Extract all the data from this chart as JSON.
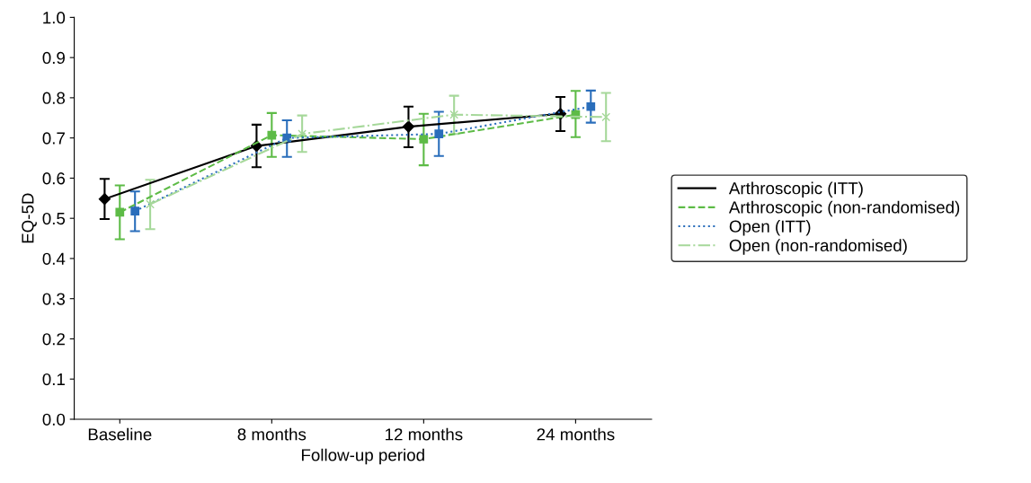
{
  "chart_data": {
    "type": "line",
    "xlabel": "Follow-up period",
    "ylabel": "EQ-5D",
    "categories": [
      "Baseline",
      "8 months",
      "12 months",
      "24 months"
    ],
    "ylim": [
      0,
      1.0
    ],
    "yticks": [
      {
        "value": 0,
        "label": "0.0"
      },
      0.1,
      0.2,
      0.3,
      0.4,
      0.5,
      0.6,
      0.7,
      0.8,
      0.9,
      {
        "value": 1.0,
        "label": "1.0"
      }
    ],
    "grid": false,
    "legend": "right",
    "series": [
      {
        "name": "Arthroscopic (ITT)",
        "color": "#000000",
        "marker": "diamond",
        "line_style": "solid",
        "values": [
          0.548,
          0.68,
          0.728,
          0.76
        ],
        "errors": [
          [
            0.498,
            0.598
          ],
          [
            0.627,
            0.733
          ],
          [
            0.677,
            0.778
          ],
          [
            0.717,
            0.802
          ]
        ]
      },
      {
        "name": "Arthroscopic (non-randomised)",
        "color": "#5dbb46",
        "marker": "square",
        "line_style": "dashed",
        "values": [
          0.515,
          0.707,
          0.697,
          0.758
        ],
        "errors": [
          [
            0.448,
            0.582
          ],
          [
            0.653,
            0.762
          ],
          [
            0.632,
            0.76
          ],
          [
            0.702,
            0.817
          ]
        ]
      },
      {
        "name": "Open (ITT)",
        "color": "#2a6ebb",
        "marker": "square",
        "line_style": "dotted",
        "values": [
          0.518,
          0.7,
          0.71,
          0.778
        ],
        "errors": [
          [
            0.468,
            0.567
          ],
          [
            0.653,
            0.744
          ],
          [
            0.655,
            0.765
          ],
          [
            0.738,
            0.818
          ]
        ]
      },
      {
        "name": "Open (non-randomised)",
        "color": "#a6d89a",
        "marker": "cross",
        "line_style": "dashdot",
        "values": [
          0.535,
          0.71,
          0.758,
          0.752
        ],
        "errors": [
          [
            0.473,
            0.596
          ],
          [
            0.665,
            0.756
          ],
          [
            0.71,
            0.805
          ],
          [
            0.692,
            0.812
          ]
        ]
      }
    ]
  }
}
